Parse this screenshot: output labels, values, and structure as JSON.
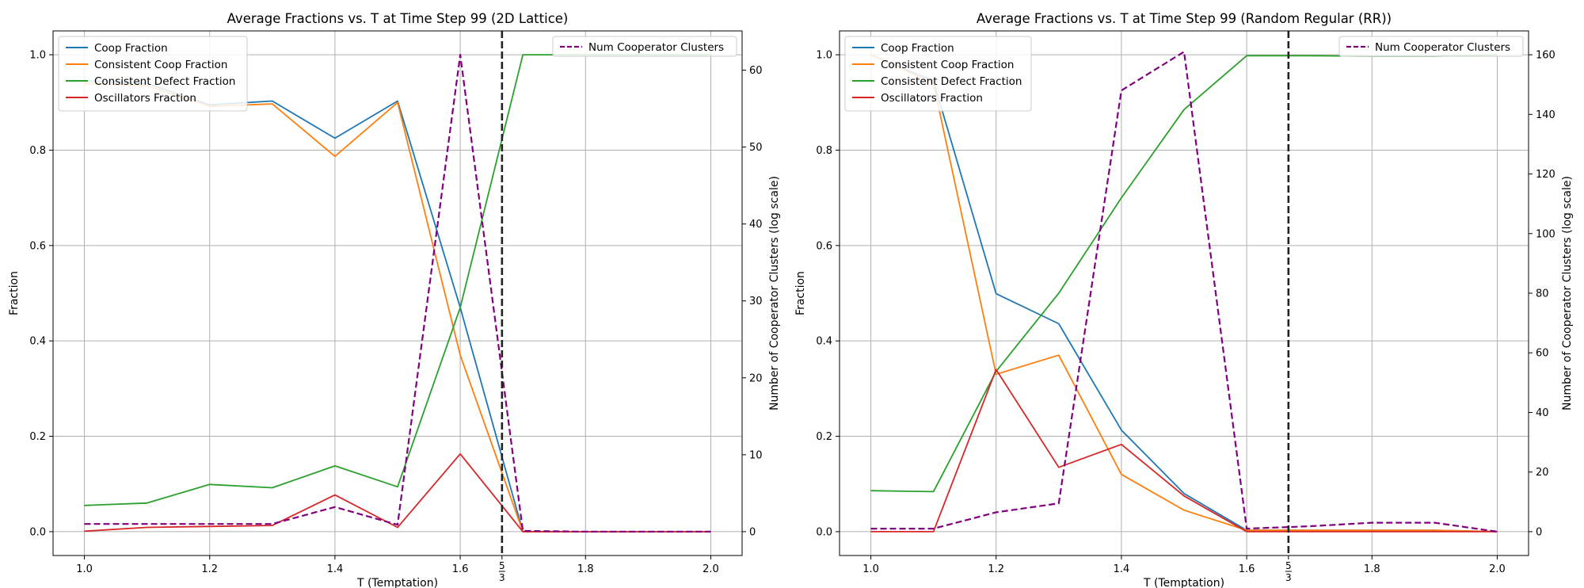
{
  "chart_data": [
    {
      "type": "line",
      "title": "Average Fractions vs. T at Time Step 99 (2D Lattice)",
      "xlabel": "T (Temptation)",
      "ylabel": "Fraction",
      "y2label": "Number of Cooperator Clusters (log scale)",
      "xlim": [
        0.95,
        2.05
      ],
      "ylim": [
        -0.05,
        1.05
      ],
      "y2lim": [
        -3.1,
        65.1
      ],
      "xticks": [
        "1.0",
        "1.2",
        "1.4",
        "1.6",
        "1.8",
        "2.0"
      ],
      "yticks": [
        "0.0",
        "0.2",
        "0.4",
        "0.6",
        "0.8",
        "1.0"
      ],
      "y2ticks": [
        "0",
        "10",
        "20",
        "30",
        "40",
        "50",
        "60"
      ],
      "grid": true,
      "vline": {
        "x": 1.6667,
        "label_num": "5",
        "label_den": "3"
      },
      "legend_left_placement": "top-left",
      "legend_right_placement": "top-right",
      "x": [
        1.0,
        1.1,
        1.2,
        1.3,
        1.4,
        1.5,
        1.6,
        1.7,
        1.8,
        1.9,
        2.0
      ],
      "series": [
        {
          "name": "Coop Fraction",
          "color": "#1f77b4",
          "dashed": false,
          "axis": "left",
          "values": [
            0.945,
            0.94,
            0.895,
            0.903,
            0.825,
            0.903,
            0.47,
            0.0,
            0.0,
            0.0,
            0.0
          ]
        },
        {
          "name": "Consistent Coop Fraction",
          "color": "#ff7f0e",
          "dashed": false,
          "axis": "left",
          "values": [
            0.94,
            0.935,
            0.892,
            0.897,
            0.787,
            0.9,
            0.37,
            0.0,
            0.0,
            0.0,
            0.0
          ]
        },
        {
          "name": "Consistent Defect Fraction",
          "color": "#2ca02c",
          "dashed": false,
          "axis": "left",
          "values": [
            0.055,
            0.06,
            0.099,
            0.092,
            0.138,
            0.094,
            0.47,
            1.0,
            1.0,
            1.0,
            1.0
          ]
        },
        {
          "name": "Oscillators Fraction",
          "color": "#d62728",
          "dashed": false,
          "axis": "left",
          "values": [
            0.001,
            0.009,
            0.011,
            0.013,
            0.077,
            0.009,
            0.163,
            0.0,
            0.0,
            0.0,
            0.0
          ]
        },
        {
          "name": "Num Cooperator Clusters",
          "color": "#800080",
          "dashed": true,
          "axis": "right",
          "values": [
            1.0,
            1.0,
            1.0,
            1.0,
            3.2,
            0.9,
            62.0,
            0.1,
            0.0,
            0.0,
            0.0
          ]
        }
      ]
    },
    {
      "type": "line",
      "title": "Average Fractions vs. T at Time Step 99 (Random Regular (RR))",
      "xlabel": "T (Temptation)",
      "ylabel": "Fraction",
      "y2label": "Number of Cooperator Clusters (log scale)",
      "xlim": [
        0.95,
        2.05
      ],
      "ylim": [
        -0.05,
        1.05
      ],
      "y2lim": [
        -8.0,
        168.0
      ],
      "xticks": [
        "1.0",
        "1.2",
        "1.4",
        "1.6",
        "1.8",
        "2.0"
      ],
      "yticks": [
        "0.0",
        "0.2",
        "0.4",
        "0.6",
        "0.8",
        "1.0"
      ],
      "y2ticks": [
        "0",
        "20",
        "40",
        "60",
        "80",
        "100",
        "120",
        "140",
        "160"
      ],
      "grid": true,
      "vline": {
        "x": 1.6667,
        "label_num": "5",
        "label_den": "3"
      },
      "legend_left_placement": "top-left",
      "legend_right_placement": "top-right",
      "x": [
        1.0,
        1.1,
        1.2,
        1.3,
        1.4,
        1.5,
        1.6,
        1.7,
        1.8,
        1.9,
        2.0
      ],
      "series": [
        {
          "name": "Coop Fraction",
          "color": "#1f77b4",
          "dashed": false,
          "axis": "left",
          "values": [
            1.0,
            0.945,
            0.499,
            0.436,
            0.213,
            0.08,
            0.003,
            0.003,
            0.003,
            0.003,
            0.0
          ]
        },
        {
          "name": "Consistent Coop Fraction",
          "color": "#ff7f0e",
          "dashed": false,
          "axis": "left",
          "values": [
            1.0,
            0.94,
            0.33,
            0.37,
            0.12,
            0.045,
            0.003,
            0.003,
            0.003,
            0.003,
            0.0
          ]
        },
        {
          "name": "Consistent Defect Fraction",
          "color": "#2ca02c",
          "dashed": false,
          "axis": "left",
          "values": [
            0.086,
            0.084,
            0.336,
            0.5,
            0.7,
            0.885,
            0.998,
            0.998,
            0.997,
            0.997,
            1.0
          ]
        },
        {
          "name": "Oscillators Fraction",
          "color": "#d62728",
          "dashed": false,
          "axis": "left",
          "values": [
            0.0,
            0.0,
            0.34,
            0.135,
            0.183,
            0.075,
            0.0,
            0.0,
            0.0,
            0.0,
            0.0
          ]
        },
        {
          "name": "Num Cooperator Clusters",
          "color": "#800080",
          "dashed": true,
          "axis": "right",
          "values": [
            1.0,
            1.0,
            6.5,
            9.5,
            148.0,
            161.0,
            1.0,
            1.8,
            3.0,
            3.0,
            0.0
          ]
        }
      ]
    }
  ]
}
